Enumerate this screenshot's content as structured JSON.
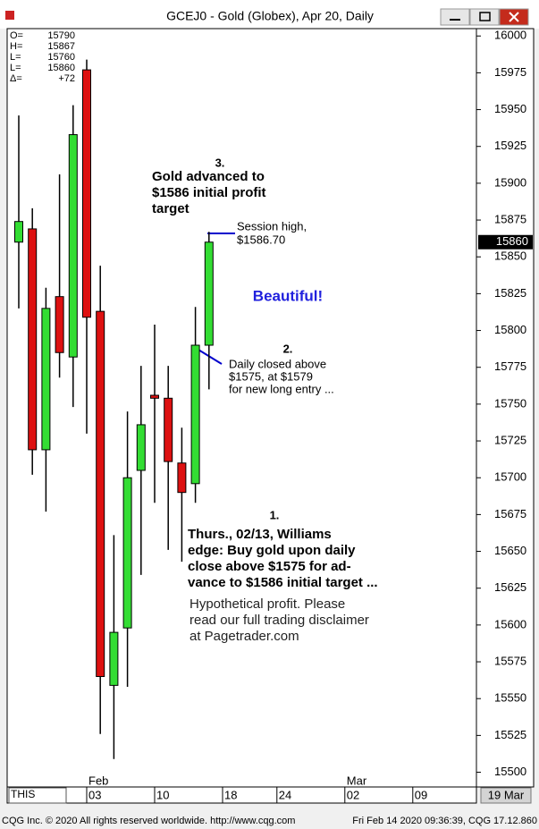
{
  "window": {
    "title": "GCEJ0 - Gold (Globex), Apr 20, Daily"
  },
  "chart_data": {
    "type": "candlestick",
    "categories": [
      null,
      null,
      null,
      null,
      null,
      "03",
      null,
      null,
      null,
      null,
      "10",
      null,
      null,
      null,
      null,
      "18",
      null,
      null,
      null,
      "24",
      null,
      null,
      null,
      null,
      "02",
      null,
      null,
      null,
      null,
      "09",
      null,
      null,
      null,
      null
    ],
    "months": [
      null,
      null,
      null,
      null,
      null,
      "Feb",
      null,
      null,
      null,
      null,
      null,
      null,
      null,
      null,
      null,
      null,
      null,
      null,
      null,
      null,
      null,
      null,
      null,
      null,
      "Mar",
      null,
      null,
      null,
      null,
      null,
      null,
      null,
      null,
      null
    ],
    "open": [
      15860,
      15869,
      15719,
      15823,
      15782,
      15977,
      15813,
      15559,
      15598,
      15705,
      15756,
      15754,
      15710,
      15696,
      15790,
      null,
      null,
      null,
      null,
      null,
      null,
      null,
      null,
      null,
      null,
      null,
      null,
      null,
      null,
      null,
      null,
      null,
      null,
      null
    ],
    "high": [
      15946,
      15883,
      15829,
      15906,
      15953,
      15984,
      15844,
      15661,
      15745,
      15776,
      15804,
      15776,
      15734,
      15816,
      15867,
      null,
      null,
      null,
      null,
      null,
      null,
      null,
      null,
      null,
      null,
      null,
      null,
      null,
      null,
      null,
      null,
      null,
      null,
      null
    ],
    "low": [
      15815,
      15702,
      15677,
      15768,
      15748,
      15730,
      15526,
      15509,
      15558,
      15634,
      15683,
      15651,
      15643,
      15683,
      15760,
      null,
      null,
      null,
      null,
      null,
      null,
      null,
      null,
      null,
      null,
      null,
      null,
      null,
      null,
      null,
      null,
      null,
      null,
      null
    ],
    "close": [
      15874,
      15719,
      15815,
      15785,
      15933,
      15809,
      15565,
      15595,
      15700,
      15736,
      15754,
      15711,
      15690,
      15790,
      15860,
      null,
      null,
      null,
      null,
      null,
      null,
      null,
      null,
      null,
      null,
      null,
      null,
      null,
      null,
      null,
      null,
      null,
      null,
      null
    ],
    "up_color": "#33dd33",
    "down_color": "#dd1111",
    "ylim": [
      15490,
      16005
    ],
    "yticks": [
      15500,
      15525,
      15550,
      15575,
      15600,
      15625,
      15650,
      15675,
      15700,
      15725,
      15750,
      15775,
      15800,
      15825,
      15850,
      15875,
      15900,
      15925,
      15950,
      15975,
      16000
    ],
    "readout": [
      {
        "label": "O=",
        "value": 15790
      },
      {
        "label": "H=",
        "value": 15867
      },
      {
        "label": "L=",
        "value": 15760
      },
      {
        "label": "L=",
        "value": 15860
      },
      {
        "label": "Δ=",
        "value": {
          "value": 72,
          "label": "+72"
        }
      }
    ],
    "annotations": [
      {
        "number": "3.",
        "lines": [
          "Gold advanced to",
          "$1586 initial profit",
          "target"
        ]
      },
      {
        "lines": [
          "Session high,",
          "$1586.70"
        ]
      },
      {
        "lines": [
          "Beautiful!"
        ]
      },
      {
        "number": "2.",
        "lines": [
          "Daily closed above",
          "$1575, at $1579",
          "for new long entry ..."
        ]
      },
      {
        "number": "1.",
        "lines": [
          "Thurs., 02/13, Williams",
          "edge: Buy gold upon daily",
          "close above $1575 for ad-",
          "vance to $1586 initial target ..."
        ]
      },
      {
        "lines": [
          "Hypothetical profit.  Please",
          "read our full trading disclaimer",
          "at Pagetrader.com"
        ]
      }
    ]
  },
  "toolbar": {
    "symbol_input": "THIS",
    "date_box": "19 Mar"
  },
  "footer": {
    "left": "CQG Inc. © 2020 All rights reserved worldwide. http://www.cqg.com",
    "right": "Fri Feb 14 2020 09:36:39, CQG 17.12.860"
  }
}
